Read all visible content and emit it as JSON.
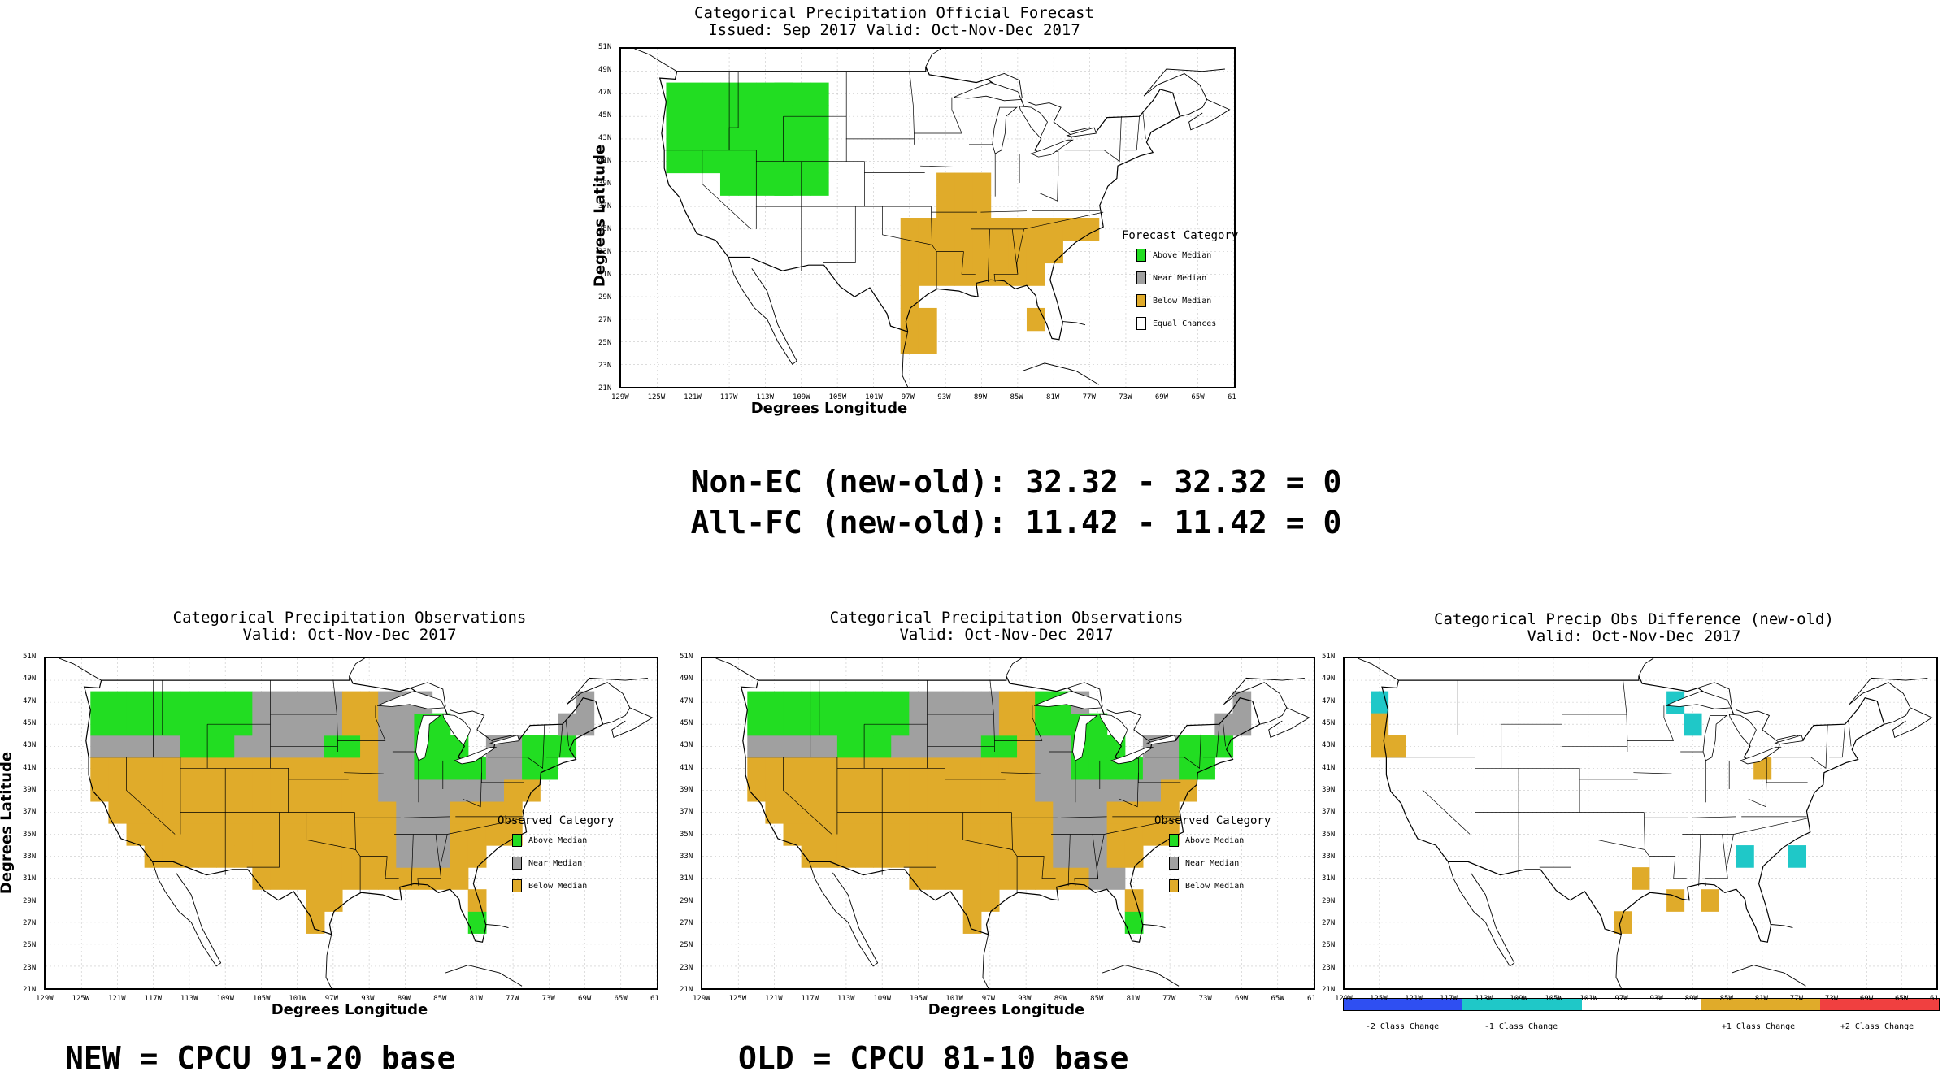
{
  "colors": {
    "above": "#22dd22",
    "near": "#a0a0a0",
    "below": "#e0ab2a",
    "equal": "#ffffff",
    "minus2": "#2f4ff2",
    "minus1": "#1fc8c8",
    "plus1": "#e0ab2a",
    "plus2": "#f04040"
  },
  "axes": {
    "lat_ticks": [
      "51N",
      "49N",
      "47N",
      "45N",
      "43N",
      "41N",
      "39N",
      "37N",
      "35N",
      "33N",
      "31N",
      "29N",
      "27N",
      "25N",
      "23N",
      "21N"
    ],
    "lon_ticks": [
      "129W",
      "125W",
      "121W",
      "117W",
      "113W",
      "109W",
      "105W",
      "101W",
      "97W",
      "93W",
      "89W",
      "85W",
      "81W",
      "77W",
      "73W",
      "69W",
      "65W",
      "61"
    ],
    "xlabel": "Degrees Longitude",
    "ylabel": "Degrees Latitude"
  },
  "forecast": {
    "title1": "Categorical Precipitation Official Forecast",
    "title2": "Issued: Sep 2017 Valid: Oct-Nov-Dec 2017",
    "legend_title": "Forecast Category",
    "legend": [
      "Above Median",
      "Near Median",
      "Below Median",
      "Equal Chances"
    ]
  },
  "stats": {
    "line1": "Non-EC (new-old): 32.32 - 32.32 = 0",
    "line2": "All-FC (new-old): 11.42 - 11.42 = 0"
  },
  "obs_new": {
    "title1": "Categorical Precipitation Observations",
    "title2": "Valid: Oct-Nov-Dec 2017",
    "legend_title": "Observed Category",
    "legend": [
      "Above Median",
      "Near Median",
      "Below Median"
    ],
    "caption": "NEW = CPCU 91-20 base"
  },
  "obs_old": {
    "title1": "Categorical Precipitation Observations",
    "title2": "Valid: Oct-Nov-Dec 2017",
    "legend_title": "Observed Category",
    "legend": [
      "Above Median",
      "Near Median",
      "Below Median"
    ],
    "caption": "OLD = CPCU 81-10 base"
  },
  "diff": {
    "title1": "Categorical Precip Obs Difference (new-old)",
    "title2": "Valid: Oct-Nov-Dec 2017",
    "colorbar": [
      "-2 Class Change",
      "-1 Class Change",
      "",
      "+1 Class Change",
      "+2 Class Change"
    ]
  }
}
